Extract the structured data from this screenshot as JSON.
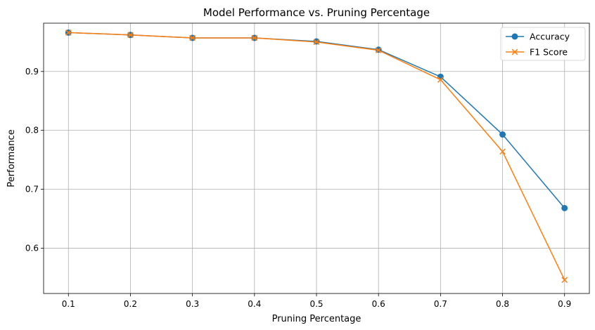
{
  "chart_data": {
    "type": "line",
    "title": "Model Performance vs. Pruning Percentage",
    "xlabel": "Pruning Percentage",
    "ylabel": "Performance",
    "xlim": [
      0.06,
      0.94
    ],
    "ylim": [
      0.523,
      0.982
    ],
    "x_ticks": [
      0.1,
      0.2,
      0.3,
      0.4,
      0.5,
      0.6,
      0.7,
      0.8,
      0.9
    ],
    "x_tick_labels": [
      "0.1",
      "0.2",
      "0.3",
      "0.4",
      "0.5",
      "0.6",
      "0.7",
      "0.8",
      "0.9"
    ],
    "y_ticks": [
      0.6,
      0.7,
      0.8,
      0.9
    ],
    "y_tick_labels": [
      "0.6",
      "0.7",
      "0.8",
      "0.9"
    ],
    "grid": true,
    "legend_position": "top-right",
    "x": [
      0.1,
      0.2,
      0.3,
      0.4,
      0.5,
      0.6,
      0.7,
      0.8,
      0.9
    ],
    "series": [
      {
        "name": "Accuracy",
        "marker": "circle",
        "color": "#1f77b4",
        "values": [
          0.966,
          0.962,
          0.957,
          0.957,
          0.951,
          0.937,
          0.891,
          0.793,
          0.668
        ]
      },
      {
        "name": "F1 Score",
        "marker": "x",
        "color": "#ff7f0e",
        "values": [
          0.966,
          0.962,
          0.957,
          0.957,
          0.95,
          0.936,
          0.886,
          0.764,
          0.546
        ]
      }
    ]
  }
}
